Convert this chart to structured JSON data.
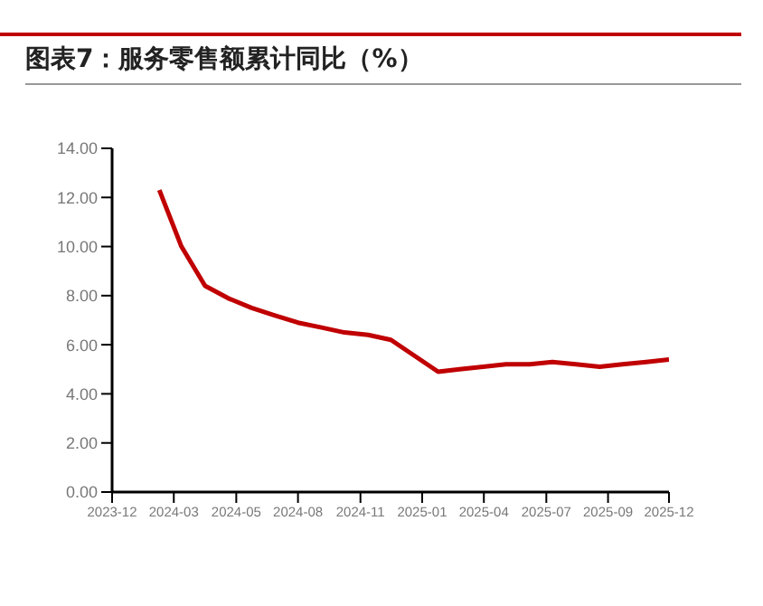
{
  "chart_data": {
    "type": "line",
    "title": "图表7：服务零售额累计同比（%）",
    "x": [
      "2024-02",
      "2024-03",
      "2024-04",
      "2024-05",
      "2024-06",
      "2024-07",
      "2024-08",
      "2024-09",
      "2024-10",
      "2024-11",
      "2024-12",
      "2025-02",
      "2025-03",
      "2025-04",
      "2025-05",
      "2025-06",
      "2025-07",
      "2025-08",
      "2025-09",
      "2025-10",
      "2025-11",
      "2025-12"
    ],
    "series": [
      {
        "color": "#c00000",
        "values": [
          12.3,
          10.0,
          8.4,
          7.9,
          7.5,
          7.2,
          6.9,
          6.7,
          6.5,
          6.4,
          6.2,
          4.9,
          5.0,
          5.1,
          5.2,
          5.2,
          5.3,
          5.2,
          5.1,
          5.2,
          5.3,
          5.4
        ]
      }
    ],
    "xlim": [
      "2023-12",
      "2025-12"
    ],
    "xticks": [
      "2023-12",
      {
        "value": "2024-02-20",
        "label": "2024-03"
      },
      {
        "value": "2024-05-12",
        "label": "2024-05"
      },
      {
        "value": "2024-08-01",
        "label": "2024-08"
      },
      {
        "value": "2024-10-22",
        "label": "2024-11"
      },
      {
        "value": "2025-01-11",
        "label": "2025-01"
      },
      {
        "value": "2025-04-02",
        "label": "2025-04"
      },
      {
        "value": "2025-06-23",
        "label": "2025-07"
      },
      {
        "value": "2025-09-12",
        "label": "2025-09"
      },
      "2025-12"
    ],
    "ylim": [
      0,
      14
    ],
    "yticks": [
      {
        "value": 0,
        "label": "0.00"
      },
      {
        "value": 2,
        "label": "2.00"
      },
      {
        "value": 4,
        "label": "4.00"
      },
      {
        "value": 6,
        "label": "6.00"
      },
      {
        "value": 8,
        "label": "8.00"
      },
      {
        "value": 10,
        "label": "10.00"
      },
      {
        "value": 12,
        "label": "12.00"
      },
      {
        "value": 14,
        "label": "14.00"
      }
    ],
    "grid": false,
    "legend": false,
    "marker": "none",
    "line_style": "solid"
  }
}
